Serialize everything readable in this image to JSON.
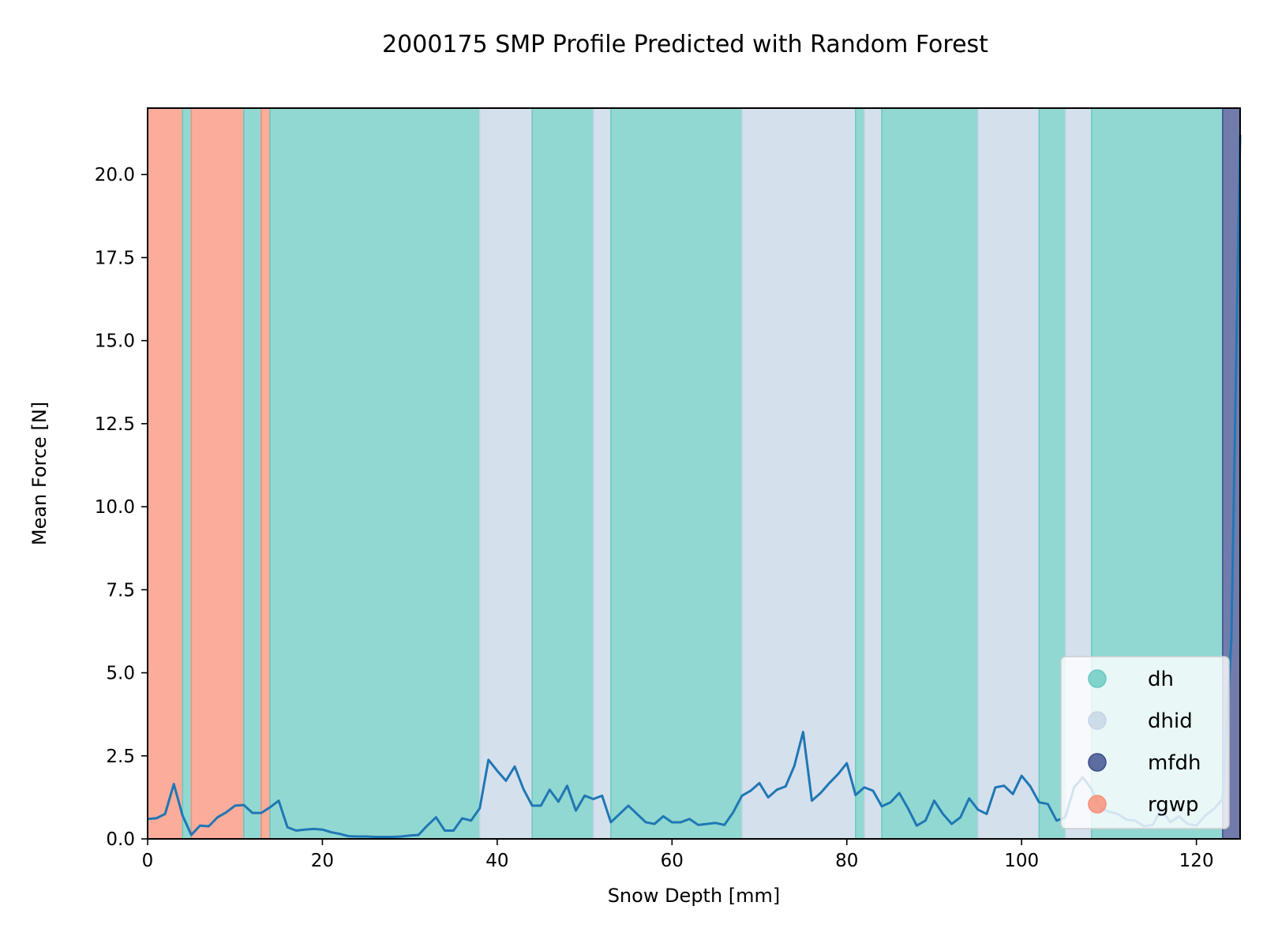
{
  "chart_data": {
    "type": "line",
    "title": "2000175 SMP Profile Predicted with Random Forest",
    "xlabel": "Snow Depth [mm]",
    "ylabel": "Mean Force [N]",
    "xlim": [
      0,
      125
    ],
    "ylim": [
      0,
      22
    ],
    "xticks": [
      0,
      20,
      40,
      60,
      80,
      100,
      120
    ],
    "xtick_labels": [
      "0",
      "20",
      "40",
      "60",
      "80",
      "100",
      "120"
    ],
    "yticks": [
      0,
      2.5,
      5,
      7.5,
      10,
      12.5,
      15,
      17.5,
      20
    ],
    "ytick_labels": [
      "0.0",
      "2.5",
      "5.0",
      "7.5",
      "10.0",
      "12.5",
      "15.0",
      "17.5",
      "20.0"
    ],
    "grid": false,
    "legend_position": "lower-right",
    "classes": [
      {
        "name": "dh",
        "color": "#66c9c0"
      },
      {
        "name": "dhid",
        "color": "#c5d4e6"
      },
      {
        "name": "mfdh",
        "color": "#3a4a8c"
      },
      {
        "name": "rgwp",
        "color": "#fa8c75"
      }
    ],
    "segments": [
      {
        "start": 0,
        "end": 4,
        "class": "rgwp"
      },
      {
        "start": 4,
        "end": 5,
        "class": "dh"
      },
      {
        "start": 5,
        "end": 11,
        "class": "rgwp"
      },
      {
        "start": 11,
        "end": 13,
        "class": "dh"
      },
      {
        "start": 13,
        "end": 14,
        "class": "rgwp"
      },
      {
        "start": 14,
        "end": 38,
        "class": "dh"
      },
      {
        "start": 38,
        "end": 44,
        "class": "dhid"
      },
      {
        "start": 44,
        "end": 51,
        "class": "dh"
      },
      {
        "start": 51,
        "end": 53,
        "class": "dhid"
      },
      {
        "start": 53,
        "end": 68,
        "class": "dh"
      },
      {
        "start": 68,
        "end": 81,
        "class": "dhid"
      },
      {
        "start": 81,
        "end": 82,
        "class": "dh"
      },
      {
        "start": 82,
        "end": 84,
        "class": "dhid"
      },
      {
        "start": 84,
        "end": 95,
        "class": "dh"
      },
      {
        "start": 95,
        "end": 102,
        "class": "dhid"
      },
      {
        "start": 102,
        "end": 105,
        "class": "dh"
      },
      {
        "start": 105,
        "end": 108,
        "class": "dhid"
      },
      {
        "start": 108,
        "end": 123,
        "class": "dh"
      },
      {
        "start": 123,
        "end": 125,
        "class": "mfdh"
      }
    ],
    "series": [
      {
        "color": "#1f77b4",
        "x": [
          0,
          1,
          2,
          3,
          4,
          5,
          6,
          7,
          8,
          9,
          10,
          11,
          12,
          13,
          14,
          15,
          16,
          17,
          18,
          19,
          20,
          21,
          22,
          23,
          24,
          25,
          26,
          27,
          28,
          29,
          30,
          31,
          32,
          33,
          34,
          35,
          36,
          37,
          38,
          39,
          40,
          41,
          42,
          43,
          44,
          45,
          46,
          47,
          48,
          49,
          50,
          51,
          52,
          53,
          54,
          55,
          56,
          57,
          58,
          59,
          60,
          61,
          62,
          63,
          64,
          65,
          66,
          67,
          68,
          69,
          70,
          71,
          72,
          73,
          74,
          75,
          76,
          77,
          78,
          79,
          80,
          81,
          82,
          83,
          84,
          85,
          86,
          87,
          88,
          89,
          90,
          91,
          92,
          93,
          94,
          95,
          96,
          97,
          98,
          99,
          100,
          101,
          102,
          103,
          104,
          105,
          106,
          107,
          108,
          109,
          110,
          111,
          112,
          113,
          114,
          115,
          116,
          117,
          118,
          119,
          120,
          121,
          122,
          123,
          124,
          125
        ],
        "values": [
          0.6,
          0.62,
          0.75,
          1.65,
          0.7,
          0.12,
          0.4,
          0.38,
          0.65,
          0.8,
          1.0,
          1.02,
          0.78,
          0.78,
          0.95,
          1.15,
          0.35,
          0.25,
          0.28,
          0.3,
          0.28,
          0.2,
          0.15,
          0.08,
          0.07,
          0.07,
          0.06,
          0.06,
          0.06,
          0.07,
          0.1,
          0.12,
          0.4,
          0.65,
          0.25,
          0.25,
          0.62,
          0.55,
          0.92,
          2.38,
          2.05,
          1.75,
          2.18,
          1.5,
          1.0,
          1.0,
          1.48,
          1.12,
          1.6,
          0.85,
          1.3,
          1.2,
          1.3,
          0.5,
          0.75,
          1.0,
          0.75,
          0.5,
          0.45,
          0.68,
          0.5,
          0.5,
          0.6,
          0.42,
          0.45,
          0.48,
          0.42,
          0.8,
          1.3,
          1.45,
          1.68,
          1.25,
          1.48,
          1.58,
          2.2,
          3.22,
          1.15,
          1.38,
          1.68,
          1.95,
          2.28,
          1.32,
          1.55,
          1.45,
          0.98,
          1.1,
          1.38,
          0.92,
          0.4,
          0.55,
          1.15,
          0.75,
          0.45,
          0.65,
          1.22,
          0.88,
          0.75,
          1.55,
          1.6,
          1.35,
          1.9,
          1.58,
          1.1,
          1.05,
          0.55,
          0.65,
          1.55,
          1.85,
          1.5,
          0.92,
          0.82,
          0.75,
          0.58,
          0.55,
          0.38,
          0.42,
          0.9,
          0.5,
          0.68,
          0.45,
          0.4,
          0.7,
          0.9,
          1.2,
          6.0,
          21.2
        ]
      }
    ]
  }
}
